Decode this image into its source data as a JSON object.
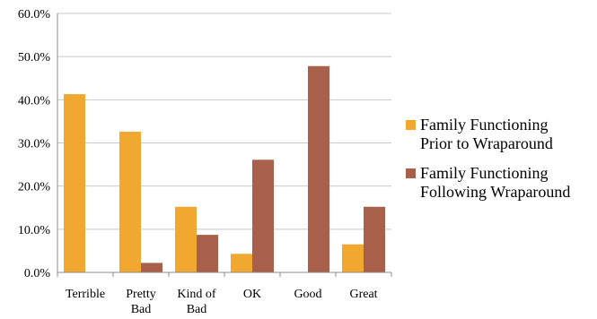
{
  "chart_data": {
    "type": "bar",
    "categories": [
      [
        "Terrible"
      ],
      [
        "Pretty",
        "Bad"
      ],
      [
        "Kind of",
        "Bad"
      ],
      [
        "OK"
      ],
      [
        "Good"
      ],
      [
        "Great"
      ]
    ],
    "series": [
      {
        "name": [
          "Family Functioning",
          "Prior to Wraparound"
        ],
        "values": [
          41.3,
          32.6,
          15.2,
          4.3,
          0.0,
          6.5
        ],
        "color": "#F0A830"
      },
      {
        "name": [
          "Family Functioning",
          "Following Wraparound"
        ],
        "values": [
          0.0,
          2.2,
          8.7,
          26.1,
          47.8,
          15.2
        ],
        "color": "#A8604A"
      }
    ],
    "ylim": [
      0,
      60
    ],
    "yticks": [
      "0.0%",
      "10.0%",
      "20.0%",
      "30.0%",
      "40.0%",
      "50.0%",
      "60.0%"
    ],
    "grid": true,
    "legend_position": "right"
  }
}
